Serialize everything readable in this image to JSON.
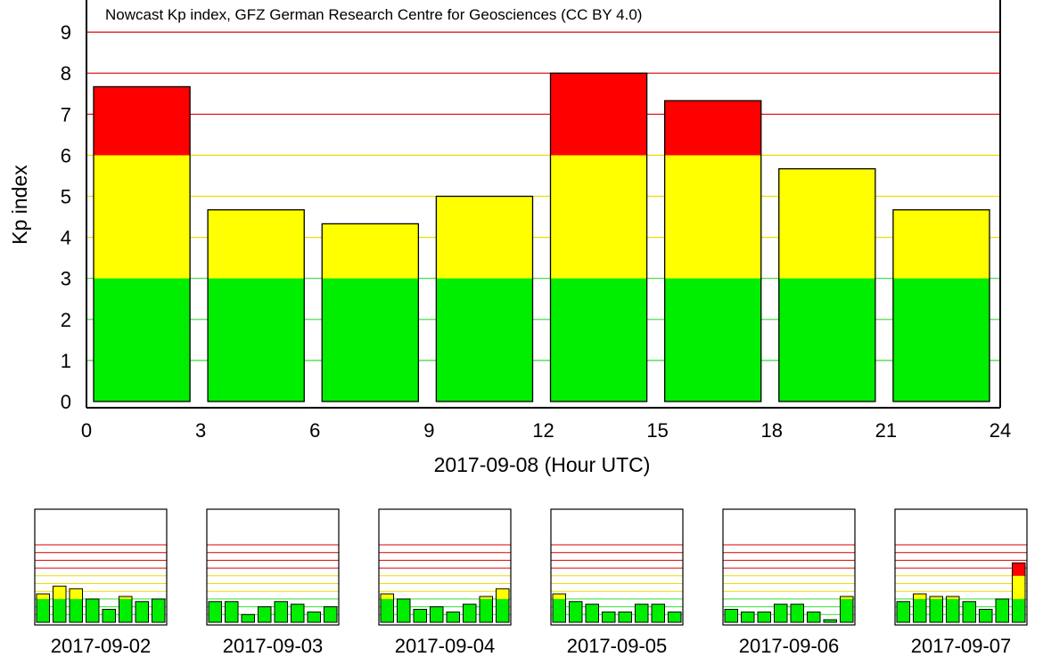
{
  "chart_data": [
    {
      "type": "bar",
      "subtitle": "Nowcast Kp index, GFZ German Research Centre for Geosciences (CC BY 4.0)",
      "ylabel": "Kp index",
      "xlabel": "2017-09-08 (Hour UTC)",
      "ylim": [
        0,
        10
      ],
      "xlim": [
        0,
        24
      ],
      "yticks": [
        "0",
        "1",
        "2",
        "3",
        "4",
        "5",
        "6",
        "7",
        "8",
        "9"
      ],
      "xticks": [
        "0",
        "3",
        "6",
        "9",
        "12",
        "15",
        "18",
        "21",
        "24"
      ],
      "x": [
        0,
        3,
        6,
        9,
        12,
        15,
        18,
        21
      ],
      "values": [
        7.67,
        4.67,
        4.33,
        5.0,
        8.0,
        7.33,
        5.67,
        4.67
      ],
      "thresholds": {
        "green_max": 3,
        "yellow_max": 6
      },
      "grid": true
    },
    {
      "type": "bar",
      "xlabel": "2017-09-02",
      "ylim": [
        0,
        10
      ],
      "values": [
        3.67,
        4.67,
        4.33,
        3.0,
        1.67,
        3.33,
        2.67,
        3.0
      ]
    },
    {
      "type": "bar",
      "xlabel": "2017-09-03",
      "ylim": [
        0,
        10
      ],
      "values": [
        2.67,
        2.67,
        1.0,
        2.0,
        2.67,
        2.33,
        1.33,
        2.0
      ]
    },
    {
      "type": "bar",
      "xlabel": "2017-09-04",
      "ylim": [
        0,
        10
      ],
      "values": [
        3.67,
        3.0,
        1.67,
        2.0,
        1.33,
        2.33,
        3.33,
        4.33
      ]
    },
    {
      "type": "bar",
      "xlabel": "2017-09-05",
      "ylim": [
        0,
        10
      ],
      "values": [
        3.67,
        2.67,
        2.33,
        1.33,
        1.33,
        2.33,
        2.33,
        1.33
      ]
    },
    {
      "type": "bar",
      "xlabel": "2017-09-06",
      "ylim": [
        0,
        10
      ],
      "values": [
        1.67,
        1.33,
        1.33,
        2.33,
        2.33,
        1.33,
        0.33,
        3.33
      ]
    },
    {
      "type": "bar",
      "xlabel": "2017-09-07",
      "ylim": [
        0,
        10
      ],
      "values": [
        2.67,
        3.67,
        3.33,
        3.33,
        2.67,
        1.67,
        3.0,
        7.67
      ]
    }
  ],
  "colors": {
    "low": "#00ee00",
    "moderate": "#ffff00",
    "storm": "#ff0000",
    "grid_low": "#33dd33",
    "grid_moderate": "#eedd00",
    "grid_storm": "#dd0000",
    "axis": "#000000"
  }
}
